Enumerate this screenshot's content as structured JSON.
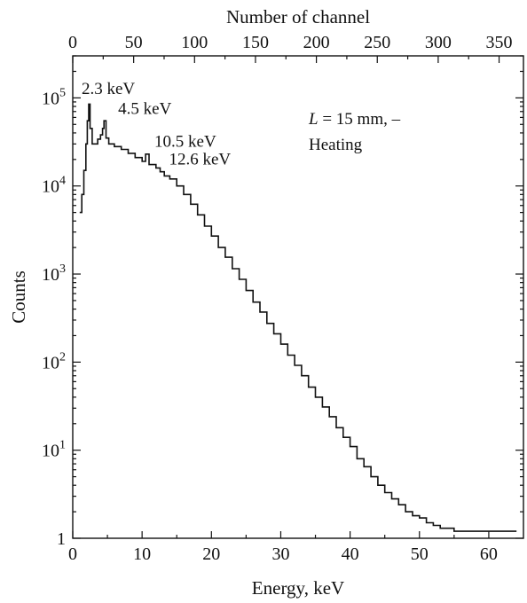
{
  "chart_data": {
    "type": "line",
    "title": "",
    "xlabel": "Energy, keV",
    "ylabel": "Counts",
    "x2label": "Number of channel",
    "xlim": [
      0,
      65
    ],
    "ylim": [
      1,
      300000
    ],
    "yscale": "log",
    "x2lim": [
      0,
      370
    ],
    "xticks": [
      "0",
      "10",
      "20",
      "30",
      "40",
      "50",
      "60"
    ],
    "x2ticks": [
      "0",
      "50",
      "100",
      "150",
      "200",
      "250",
      "300",
      "350"
    ],
    "yticks": [
      {
        "value": 1,
        "base": "1",
        "exp": ""
      },
      {
        "value": 10,
        "base": "10",
        "exp": "1"
      },
      {
        "value": 100,
        "base": "10",
        "exp": "2"
      },
      {
        "value": 1000,
        "base": "10",
        "exp": "3"
      },
      {
        "value": 10000,
        "base": "10",
        "exp": "4"
      },
      {
        "value": 100000,
        "base": "10",
        "exp": "5"
      }
    ],
    "legend_text": {
      "italic": "L",
      "rest": " = 15 mm, –",
      "line2": "Heating"
    },
    "peaks": [
      {
        "label": "2.3 keV",
        "x": 2.3,
        "y": 80000
      },
      {
        "label": "4.5 keV",
        "x": 4.5,
        "y": 52000
      },
      {
        "label": "10.5 keV",
        "x": 10.5,
        "y": 22000
      },
      {
        "label": "12.6 keV",
        "x": 12.6,
        "y": 14500
      }
    ],
    "series": [
      {
        "x": [
          1,
          1.3,
          1.6,
          1.9,
          2.1,
          2.3,
          2.5,
          2.8,
          3.2,
          3.6,
          4.0,
          4.3,
          4.5,
          4.8,
          5.2,
          6,
          7,
          8,
          9,
          10,
          10.5,
          11,
          12,
          12.6,
          13.2,
          14,
          15,
          16,
          17,
          18,
          19,
          20,
          21,
          22,
          23,
          24,
          25,
          26,
          27,
          28,
          29,
          30,
          31,
          32,
          33,
          34,
          35,
          36,
          37,
          38,
          39,
          40,
          41,
          42,
          43,
          44,
          45,
          46,
          47,
          48,
          49,
          50,
          51,
          52,
          53,
          54,
          55,
          56,
          57,
          58,
          59,
          60,
          61,
          62,
          63,
          64
        ],
        "y": [
          5000,
          8000,
          15000,
          30000,
          55000,
          85000,
          45000,
          30000,
          30000,
          34000,
          38000,
          45000,
          55000,
          35000,
          30000,
          28000,
          26000,
          23500,
          21000,
          19000,
          23000,
          17500,
          16000,
          14500,
          13000,
          12000,
          10000,
          8000,
          6200,
          4700,
          3500,
          2700,
          2000,
          1550,
          1150,
          870,
          650,
          480,
          370,
          275,
          210,
          160,
          120,
          92,
          70,
          52,
          40,
          31,
          24,
          18,
          14,
          11,
          8,
          6.5,
          5,
          4,
          3.3,
          2.8,
          2.4,
          2,
          1.8,
          1.7,
          1.5,
          1.4,
          1.3,
          1.3,
          1.2,
          1.2,
          1.2,
          1.2,
          1.2,
          1.2,
          1.2,
          1.2,
          1.2,
          1.2
        ]
      }
    ]
  }
}
